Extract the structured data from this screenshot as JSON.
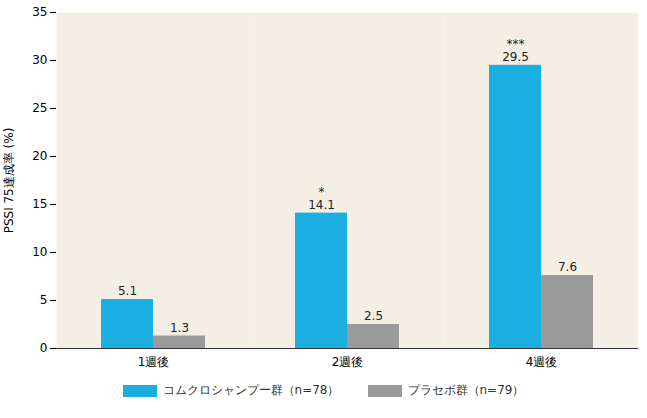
{
  "chart_data": {
    "type": "bar",
    "y_label": "PSSI 75達成率 (%)",
    "categories": [
      "1週後",
      "2週後",
      "4週後"
    ],
    "series": [
      {
        "name": "コムクロシャンプー群（n=78）",
        "color": "#1aafe0",
        "values": [
          5.1,
          14.1,
          29.5
        ],
        "significance": [
          null,
          "*",
          "***"
        ]
      },
      {
        "name": "プラセボ群（n=79）",
        "color": "#9a9a9a",
        "values": [
          1.3,
          2.5,
          7.6
        ]
      }
    ],
    "ylim": [
      0,
      35
    ],
    "yticks": [
      0,
      5,
      10,
      15,
      20,
      25,
      30,
      35
    ],
    "grid": false,
    "data_labels": true,
    "legend": "bottom"
  }
}
